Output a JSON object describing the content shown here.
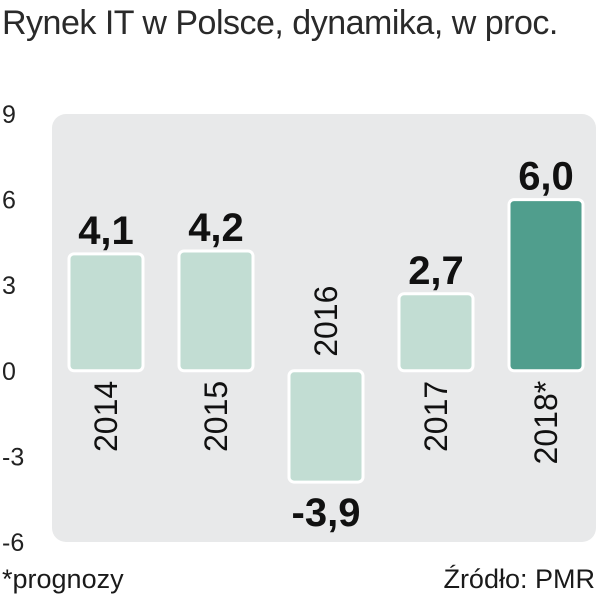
{
  "title": "Rynek IT w Polsce, dynamika, w proc.",
  "footnote": "*prognozy",
  "source": "Źródło: PMR",
  "colors": {
    "panel": "#e8e9ea",
    "bar_light": "#c2ddd3",
    "bar_highlight": "#509e8d",
    "bar_stroke": "#ffffff"
  },
  "chart_data": {
    "type": "bar",
    "categories": [
      "2014",
      "2015",
      "2016",
      "2017",
      "2018*"
    ],
    "values": [
      4.1,
      4.2,
      -3.9,
      2.7,
      6.0
    ],
    "value_labels": [
      "4,1",
      "4,2",
      "-3,9",
      "2,7",
      "6,0"
    ],
    "highlight_index": 4,
    "ylim": [
      -6,
      9
    ],
    "yticks": [
      9,
      6,
      3,
      0,
      -3,
      -6
    ],
    "grid": false,
    "title": "Rynek IT w Polsce, dynamika, w proc.",
    "xlabel": "",
    "ylabel": ""
  }
}
